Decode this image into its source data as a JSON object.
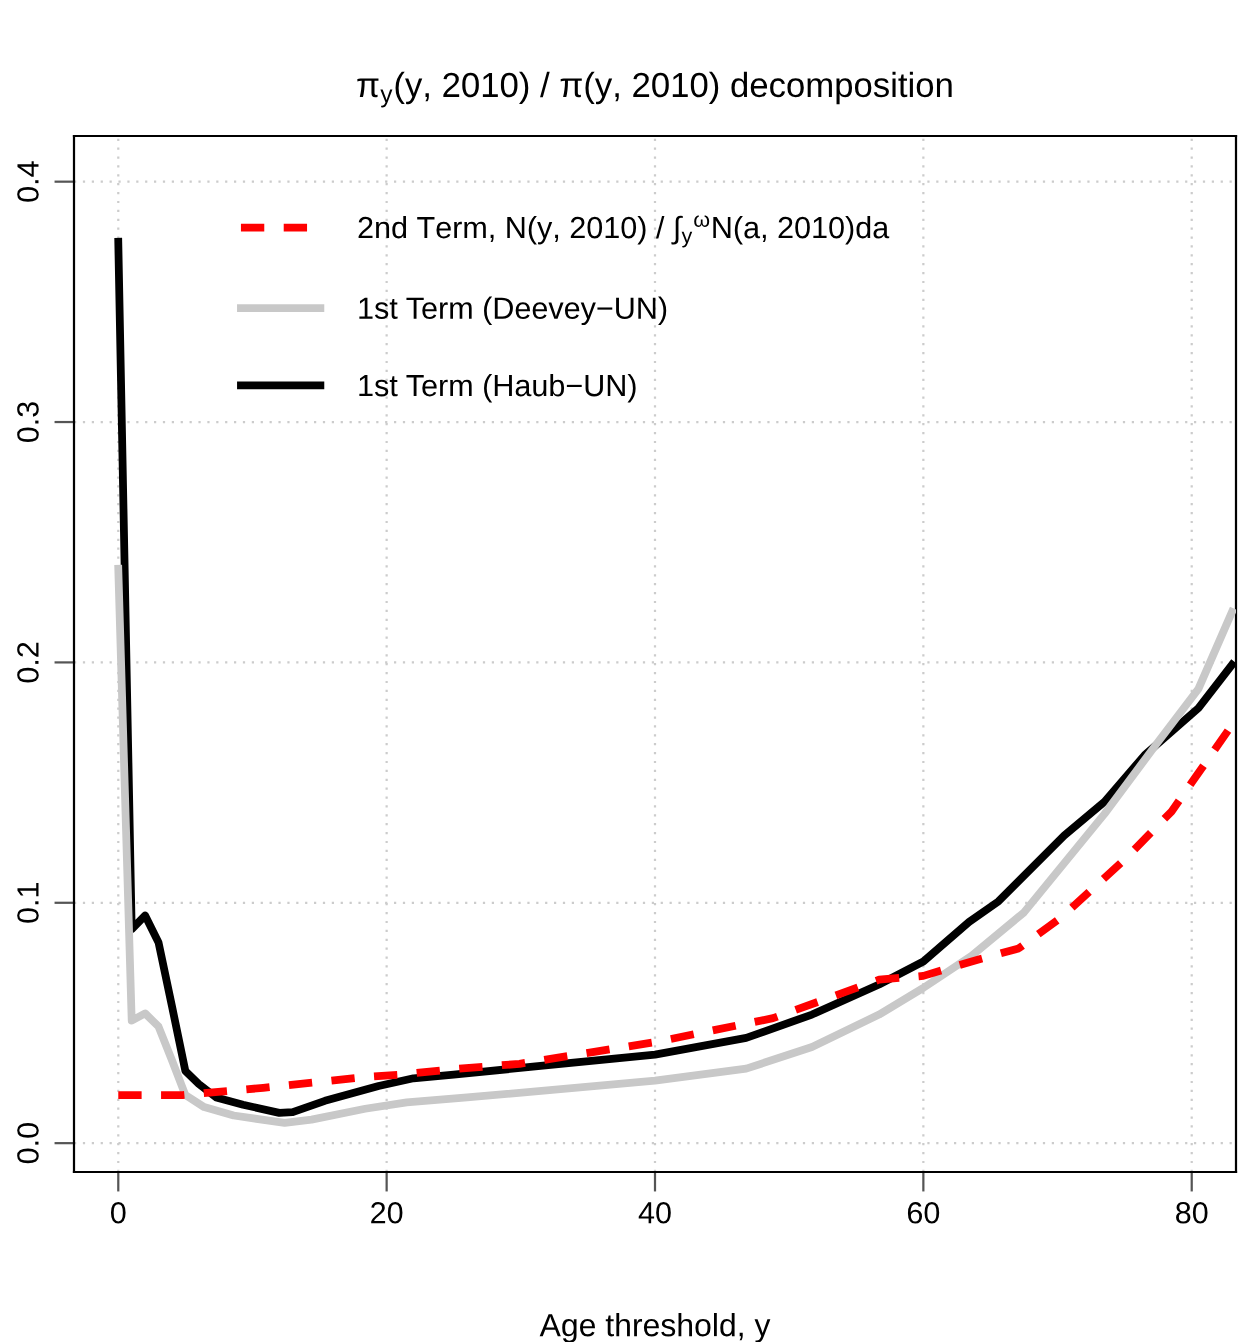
{
  "chart_data": {
    "type": "line",
    "title": "π$_{y}$(y, 2010) / π(y, 2010) decomposition",
    "xlabel": "Age threshold, y",
    "xlim": [
      -3.3,
      83.3
    ],
    "ylim": [
      -0.012,
      0.419
    ],
    "xticks": [
      0,
      20,
      40,
      60,
      80
    ],
    "yticks": [
      {
        "value": 0,
        "label": "0.0"
      },
      {
        "value": 0.1,
        "label": "0.1"
      },
      {
        "value": 0.2,
        "label": "0.2"
      },
      {
        "value": 0.3,
        "label": "0.3"
      },
      {
        "value": 0.4,
        "label": "0.4"
      }
    ],
    "grid": true,
    "legend": "top left",
    "marker": "none",
    "series": [
      {
        "name": "2nd Term, N(y, 2010) / ∫$_{y}$$^{ω}$N(a, 2010)da",
        "color": "#ff0000",
        "line_style": "dashed",
        "x": [
          0,
          4.8,
          10.8,
          18.3,
          21,
          25.4,
          29.9,
          40,
          48.8,
          56.7,
          60,
          63.6,
          67.1,
          70.3,
          75,
          78.5,
          80,
          83
        ],
        "values": [
          0.02,
          0.02,
          0.023,
          0.0275,
          0.0285,
          0.031,
          0.033,
          0.042,
          0.052,
          0.068,
          0.0696,
          0.0756,
          0.081,
          0.094,
          0.118,
          0.138,
          0.15,
          0.174
        ]
      },
      {
        "name": "1st Term (Deevey−UN)",
        "color": "#c8c8c8",
        "line_style": "solid",
        "x": [
          0,
          1,
          2,
          3,
          4,
          5,
          6.4,
          8.6,
          12.4,
          14.4,
          18.4,
          21.5,
          26,
          40,
          46.8,
          51.7,
          56.7,
          60,
          63.6,
          67.5,
          73.5,
          77.5,
          80.5,
          83
        ],
        "values": [
          0.239,
          0.051,
          0.054,
          0.0485,
          0.0345,
          0.02,
          0.015,
          0.0115,
          0.0084,
          0.0098,
          0.0143,
          0.017,
          0.019,
          0.026,
          0.031,
          0.04,
          0.0535,
          0.0646,
          0.078,
          0.096,
          0.137,
          0.167,
          0.189,
          0.221
        ]
      },
      {
        "name": "1st Term (Haub−UN)",
        "color": "#000000",
        "line_style": "solid",
        "x": [
          0,
          1,
          2,
          3,
          4,
          5,
          6,
          7.3,
          9.3,
          12,
          13,
          15.4,
          19.4,
          22,
          25,
          30.9,
          40,
          46.8,
          51.7,
          56.7,
          60,
          63.4,
          65.6,
          70.5,
          73.5,
          76.5,
          80.5,
          83
        ],
        "values": [
          0.375,
          0.089,
          0.0947,
          0.0835,
          0.057,
          0.03,
          0.0246,
          0.019,
          0.016,
          0.0126,
          0.0129,
          0.0176,
          0.0238,
          0.027,
          0.0285,
          0.0318,
          0.0368,
          0.0438,
          0.0535,
          0.066,
          0.0756,
          0.092,
          0.1006,
          0.128,
          0.142,
          0.1615,
          0.181,
          0.199
        ]
      }
    ]
  }
}
